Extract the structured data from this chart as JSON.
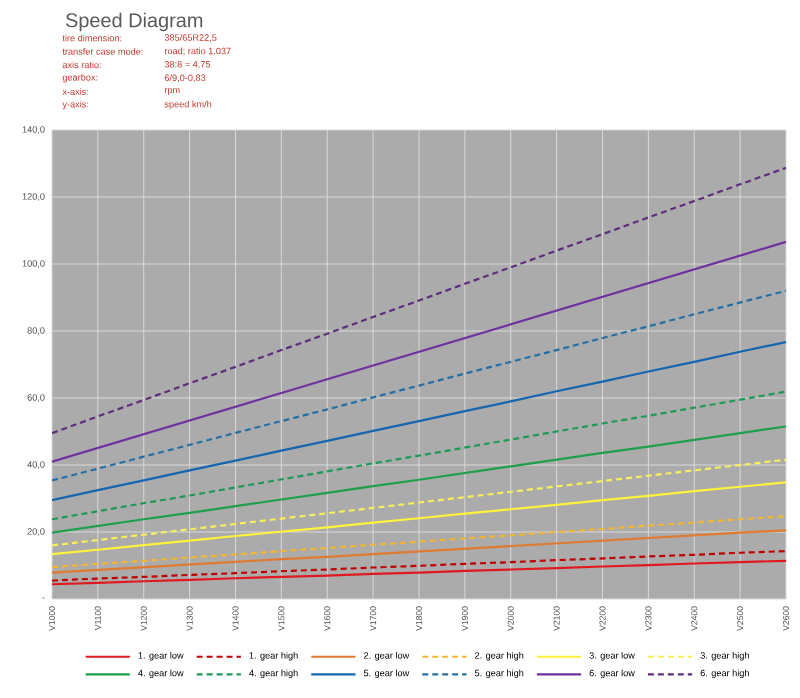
{
  "chart_data": {
    "type": "line",
    "title": "Speed Diagram",
    "annotations": [
      "tire dimension:",
      "385/65R22,5",
      "transfer case mode:",
      "road; ratio 1,037",
      "axis ratio:",
      "38:8 = 4,75",
      "gearbox:",
      "6/9,0-0,83",
      "x-axis:",
      "rpm",
      "y-axis:",
      "speed km/h"
    ],
    "categories": [
      "V1000",
      "V1100",
      "V1200",
      "V1300",
      "V1400",
      "V1500",
      "V1600",
      "V1700",
      "V1800",
      "V1900",
      "V2000",
      "V2100",
      "V2200",
      "V2300",
      "V2400",
      "V2500",
      "V2600"
    ],
    "series": [
      {
        "name": "1. gear low",
        "color": "#e0191e",
        "line_style": "solid",
        "values": [
          4.4,
          4.8,
          5.3,
          5.7,
          6.2,
          6.6,
          7.0,
          7.5,
          7.9,
          8.4,
          8.8,
          9.2,
          9.7,
          10.1,
          10.6,
          11.0,
          11.4
        ]
      },
      {
        "name": "1. gear high",
        "color": "#c00000",
        "line_style": "dashed",
        "values": [
          5.5,
          6.1,
          6.6,
          7.2,
          7.7,
          8.3,
          8.8,
          9.4,
          9.9,
          10.5,
          11.0,
          11.6,
          12.1,
          12.7,
          13.2,
          13.8,
          14.3
        ]
      },
      {
        "name": "2. gear low",
        "color": "#e07a30",
        "line_style": "solid",
        "values": [
          7.9,
          8.7,
          9.5,
          10.3,
          11.1,
          11.9,
          12.6,
          13.4,
          14.2,
          15.0,
          15.8,
          16.6,
          17.4,
          18.2,
          19.0,
          19.8,
          20.5
        ]
      },
      {
        "name": "2. gear high",
        "color": "#f2b733",
        "line_style": "dashed",
        "values": [
          9.5,
          10.5,
          11.4,
          12.4,
          13.3,
          14.3,
          15.2,
          16.2,
          17.1,
          18.1,
          19.0,
          20.0,
          20.9,
          21.9,
          22.8,
          23.8,
          24.7
        ]
      },
      {
        "name": "3. gear low",
        "color": "#fff23a",
        "line_style": "solid",
        "values": [
          13.4,
          14.7,
          16.1,
          17.4,
          18.8,
          20.1,
          21.4,
          22.8,
          24.1,
          25.5,
          26.8,
          28.1,
          29.5,
          30.8,
          32.2,
          33.5,
          34.8
        ]
      },
      {
        "name": "3. gear high",
        "color": "#f7ef5a",
        "line_style": "dashed",
        "values": [
          16.0,
          17.6,
          19.2,
          20.8,
          22.4,
          24.0,
          25.6,
          27.2,
          28.8,
          30.4,
          32.0,
          33.6,
          35.2,
          36.8,
          38.4,
          40.0,
          41.6
        ]
      },
      {
        "name": "4. gear low",
        "color": "#1ea04a",
        "line_style": "solid",
        "values": [
          19.8,
          21.8,
          23.8,
          25.7,
          27.7,
          29.7,
          31.7,
          33.7,
          35.6,
          37.6,
          39.6,
          41.6,
          43.6,
          45.5,
          47.5,
          49.5,
          51.5
        ]
      },
      {
        "name": "4. gear high",
        "color": "#1f9a55",
        "line_style": "dashed",
        "values": [
          23.8,
          26.2,
          28.6,
          30.9,
          33.3,
          35.7,
          38.1,
          40.5,
          42.8,
          45.2,
          47.6,
          50.0,
          52.4,
          54.7,
          57.1,
          59.5,
          61.9
        ]
      },
      {
        "name": "5. gear low",
        "color": "#1565b0",
        "line_style": "solid",
        "values": [
          29.5,
          32.5,
          35.4,
          38.4,
          41.3,
          44.3,
          47.2,
          50.2,
          53.1,
          56.1,
          59.0,
          62.0,
          64.9,
          67.9,
          70.8,
          73.8,
          76.7
        ]
      },
      {
        "name": "5. gear high",
        "color": "#2370a6",
        "line_style": "dashed",
        "values": [
          35.4,
          38.9,
          42.5,
          46.0,
          49.6,
          53.1,
          56.6,
          60.2,
          63.7,
          67.3,
          70.8,
          74.3,
          77.9,
          81.4,
          85.0,
          88.5,
          92.0
        ]
      },
      {
        "name": "6. gear low",
        "color": "#7030a0",
        "line_style": "solid",
        "values": [
          41.0,
          45.1,
          49.2,
          53.3,
          57.4,
          61.5,
          65.6,
          69.7,
          73.8,
          77.9,
          82.0,
          86.1,
          90.2,
          94.3,
          98.4,
          102.5,
          106.6
        ]
      },
      {
        "name": "6. gear high",
        "color": "#5e2d7e",
        "line_style": "dashed",
        "values": [
          49.5,
          54.5,
          59.4,
          64.4,
          69.3,
          74.3,
          79.2,
          84.2,
          89.1,
          94.1,
          99.0,
          104.0,
          108.9,
          113.9,
          118.8,
          123.8,
          128.7
        ]
      }
    ],
    "ylim": [
      0,
      140
    ],
    "yticks": [
      {
        "value": 0,
        "label": "-"
      },
      {
        "value": 20,
        "label": "20,0"
      },
      {
        "value": 40,
        "label": "40,0"
      },
      {
        "value": 60,
        "label": "60,0"
      },
      {
        "value": 80,
        "label": "80,0"
      },
      {
        "value": 100,
        "label": "100,0"
      },
      {
        "value": 120,
        "label": "120,0"
      },
      {
        "value": 140,
        "label": "140,0"
      }
    ],
    "grid": true,
    "legend": "bottom"
  }
}
